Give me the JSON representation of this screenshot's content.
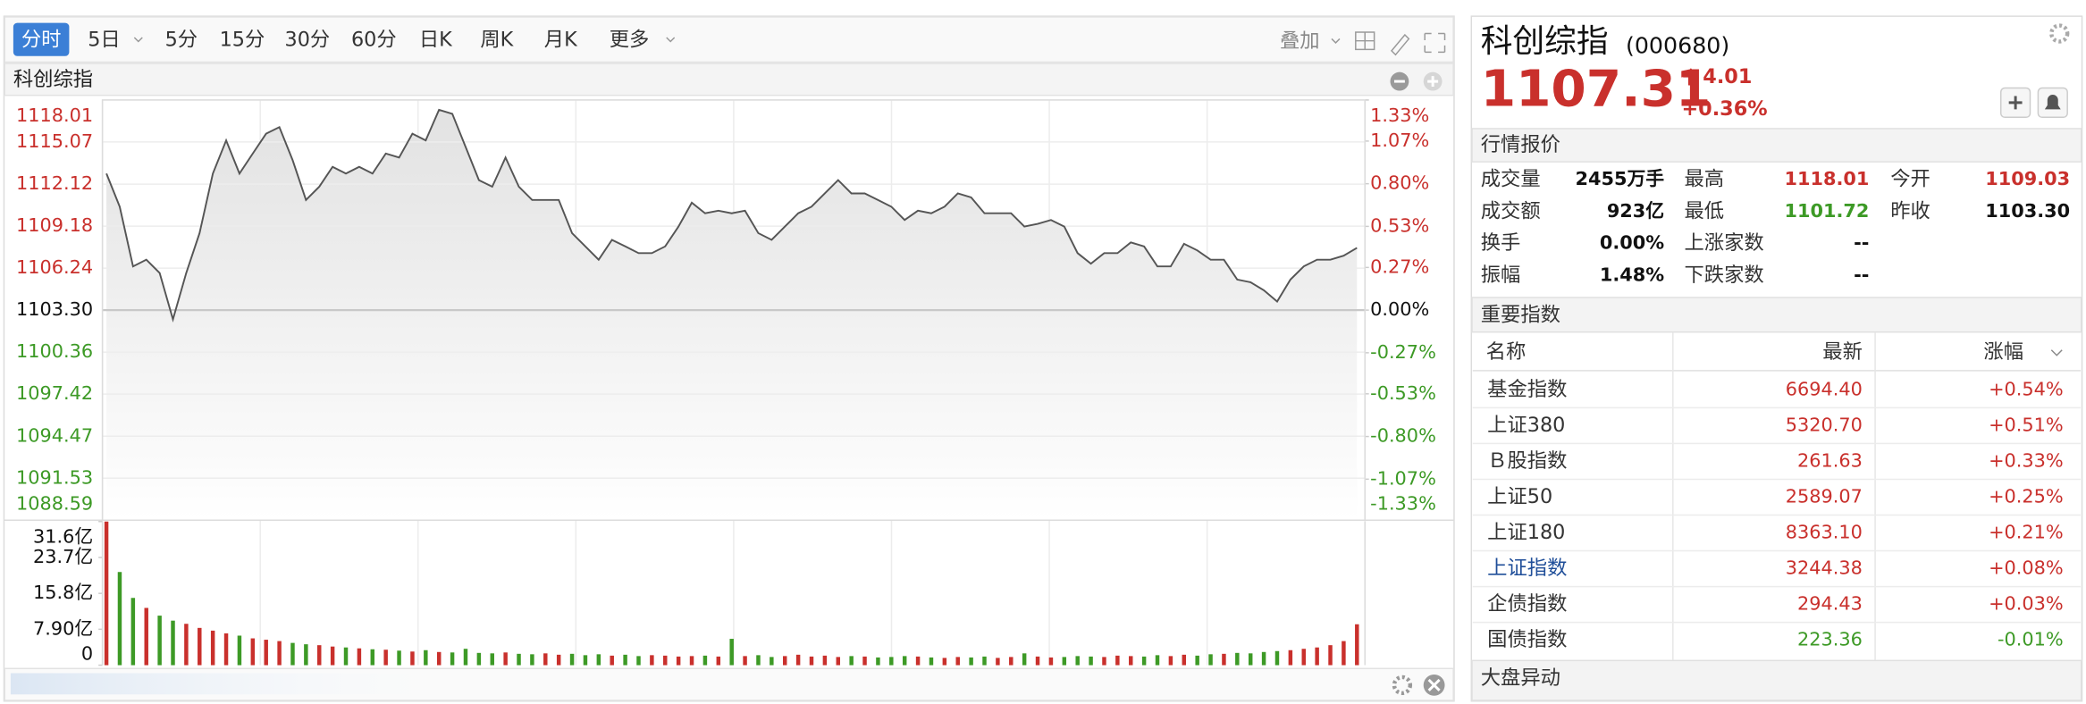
{
  "toolbar": {
    "tabs": [
      "分时",
      "5日",
      "5分",
      "15分",
      "30分",
      "60分",
      "日K",
      "周K",
      "月K",
      "更多"
    ],
    "active_tab": 0,
    "overlay": "叠加"
  },
  "chart_data": {
    "type": "line",
    "title": "科创综指",
    "color": "#555555",
    "grid": true,
    "values": [
      1112.86,
      1110.54,
      1106.36,
      1106.83,
      1105.9,
      1102.65,
      1105.9,
      1108.69,
      1112.86,
      1115.18,
      1112.86,
      1114.26,
      1115.65,
      1116.11,
      1113.79,
      1111.01,
      1111.94,
      1113.33,
      1112.86,
      1113.33,
      1112.86,
      1114.26,
      1113.98,
      1115.65,
      1115.18,
      1117.32,
      1117.04,
      1114.72,
      1112.4,
      1111.94,
      1113.98,
      1111.94,
      1111.01,
      1111.01,
      1111.01,
      1108.69,
      1107.76,
      1106.83,
      1108.22,
      1107.76,
      1107.29,
      1107.29,
      1107.76,
      1109.15,
      1110.82,
      1110.08,
      1110.26,
      1110.08,
      1110.26,
      1108.69,
      1108.22,
      1109.15,
      1110.08,
      1110.54,
      1111.47,
      1112.4,
      1111.47,
      1111.47,
      1111.01,
      1110.54,
      1109.61,
      1110.26,
      1110.08,
      1110.54,
      1111.47,
      1111.19,
      1110.08,
      1110.08,
      1110.08,
      1109.15,
      1109.34,
      1109.61,
      1109.15,
      1107.29,
      1106.55,
      1107.29,
      1107.29,
      1108.04,
      1107.76,
      1106.36,
      1106.36,
      1107.94,
      1107.48,
      1106.83,
      1106.83,
      1105.44,
      1105.25,
      1104.69,
      1103.9,
      1105.44,
      1106.36,
      1106.83,
      1106.83,
      1107.11,
      1107.66
    ],
    "ylim": [
      1088.59,
      1118.01
    ],
    "yticks": [
      1118.01,
      1115.07,
      1112.12,
      1109.18,
      1106.24,
      1103.3,
      1100.36,
      1097.42,
      1094.47,
      1091.53,
      1088.59
    ],
    "y2lim": [
      -1.33,
      1.33
    ],
    "y2ticks": [
      {
        "value": 1.33,
        "label": "1.33%"
      },
      {
        "value": 1.07,
        "label": "1.07%"
      },
      {
        "value": 0.8,
        "label": "0.80%"
      },
      {
        "value": 0.53,
        "label": "0.53%"
      },
      {
        "value": 0.27,
        "label": "0.27%"
      },
      {
        "value": 0,
        "label": "0.00%"
      },
      {
        "value": -0.27,
        "label": "-0.27%"
      },
      {
        "value": -0.53,
        "label": "-0.53%"
      },
      {
        "value": -0.8,
        "label": "-0.80%"
      },
      {
        "value": -1.07,
        "label": "-1.07%"
      },
      {
        "value": -1.33,
        "label": "-1.33%"
      }
    ],
    "yticks_labels": [
      "1118.01",
      "1115.07",
      "1112.12",
      "1109.18",
      "1106.24",
      "1103.30",
      "1100.36",
      "1097.42",
      "1094.47",
      "1091.53",
      "1088.59"
    ],
    "up_color": "#c9302c",
    "down_color": "#3d9a26",
    "volume": {
      "type": "bar",
      "values": [
        31.6,
        20.5,
        14.8,
        12.6,
        10.9,
        9.8,
        9.1,
        8.2,
        7.6,
        7.0,
        6.5,
        5.9,
        5.6,
        5.3,
        4.9,
        4.6,
        4.4,
        4.1,
        3.9,
        3.7,
        3.5,
        3.4,
        3.2,
        3.0,
        3.3,
        2.9,
        2.8,
        3.6,
        2.7,
        2.6,
        2.8,
        2.5,
        2.4,
        2.6,
        2.3,
        2.5,
        2.2,
        2.4,
        2.1,
        2.3,
        2.0,
        2.2,
        2.1,
        1.9,
        2.0,
        2.1,
        1.9,
        5.8,
        2.0,
        2.2,
        1.8,
        2.0,
        2.3,
        1.9,
        2.1,
        1.8,
        2.0,
        1.9,
        1.7,
        1.8,
        2.0,
        1.9,
        1.7,
        1.6,
        1.8,
        1.7,
        1.9,
        1.6,
        1.8,
        2.6,
        1.9,
        1.7,
        1.8,
        2.0,
        1.9,
        1.8,
        2.1,
        2.0,
        1.9,
        2.2,
        2.0,
        2.3,
        2.1,
        2.4,
        2.5,
        2.7,
        2.6,
        2.9,
        3.1,
        3.3,
        3.6,
        3.9,
        4.4,
        5.3,
        9.0
      ],
      "ylim": [
        0,
        31.6
      ],
      "yticks": [
        {
          "value": 31.6,
          "label": "31.6亿"
        },
        {
          "value": 23.7,
          "label": "23.7亿"
        },
        {
          "value": 15.8,
          "label": "15.8亿"
        },
        {
          "value": 7.9,
          "label": "7.90亿"
        },
        0
      ]
    }
  },
  "header": {
    "name": "科创综指",
    "code": "(000680)",
    "price": "1107.31",
    "change": "4.01",
    "change_percent": "+0.36%"
  },
  "market_quote": {
    "title": "行情报价",
    "rows": [
      [
        [
          "成交量",
          "2455万手"
        ],
        [
          "最高",
          "1118.01"
        ],
        [
          "今开",
          "1109.03"
        ]
      ],
      [
        [
          "成交额",
          "923亿"
        ],
        [
          "最低",
          "1101.72"
        ],
        [
          "昨收",
          "1103.30"
        ]
      ],
      [
        [
          "换手",
          "0.00%"
        ],
        [
          "上涨家数",
          "--"
        ]
      ],
      [
        [
          "振幅",
          "1.48%"
        ],
        [
          "下跌家数",
          "--"
        ]
      ]
    ]
  },
  "index_table": {
    "title": "重要指数",
    "columns": [
      "名称",
      "最新",
      "涨幅"
    ],
    "rows": [
      {
        "name": "基金指数",
        "latest": "6694.40",
        "change": "+0.54%",
        "color": "#c9302c"
      },
      {
        "name": "上证380",
        "latest": "5320.70",
        "change": "+0.51%",
        "color": "#c9302c"
      },
      {
        "name": "Ｂ股指数",
        "latest": "261.63",
        "change": "+0.33%",
        "color": "#c9302c"
      },
      {
        "name": "上证50",
        "latest": "2589.07",
        "change": "+0.25%",
        "color": "#c9302c"
      },
      {
        "name": "上证180",
        "latest": "8363.10",
        "change": "+0.21%",
        "color": "#c9302c"
      },
      {
        "name": "上证指数",
        "latest": "3244.38",
        "change": "+0.08%",
        "color": "#c9302c"
      },
      {
        "name": "企债指数",
        "latest": "294.43",
        "change": "+0.03%",
        "color": "#c9302c"
      },
      {
        "name": "国债指数",
        "latest": "223.36",
        "change": "-0.01%",
        "color": "#3d9a26"
      }
    ]
  },
  "market_alerts": {
    "title": "大盘异动"
  }
}
